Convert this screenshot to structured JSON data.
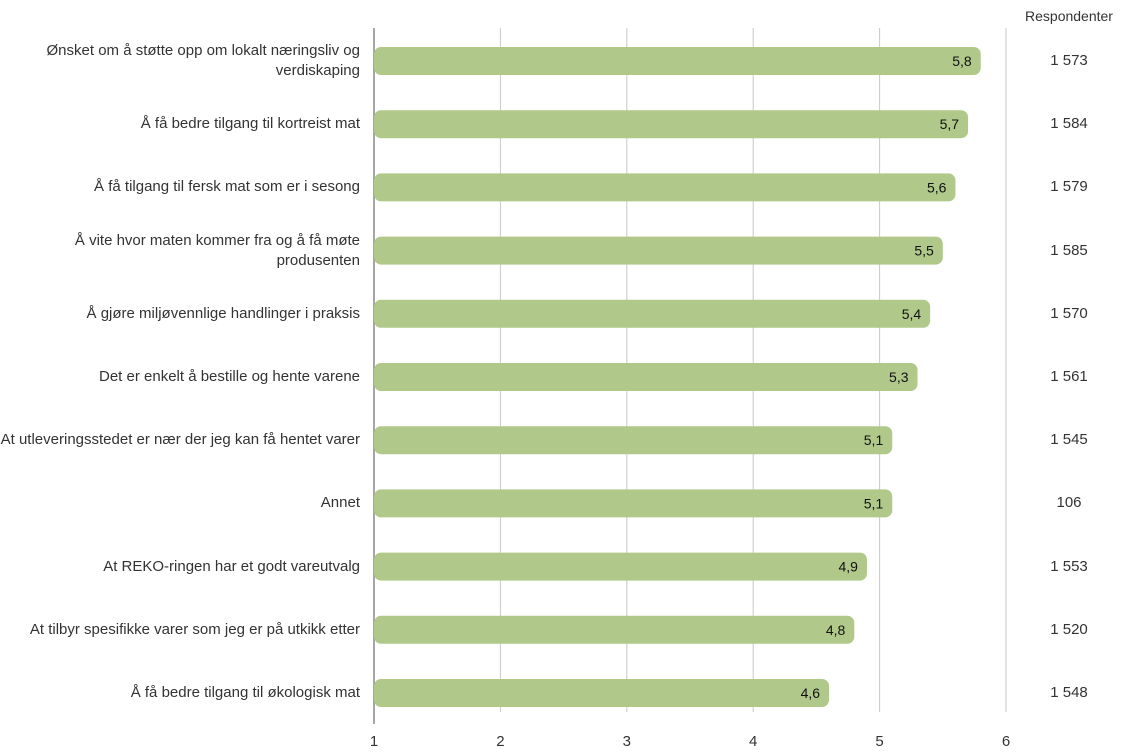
{
  "chart_data": {
    "type": "bar",
    "orientation": "horizontal",
    "categories": [
      "Ønsket om å støtte opp om lokalt næringsliv og verdiskaping",
      "Å få bedre tilgang til kortreist mat",
      "Å få tilgang til fersk mat som er i sesong",
      "Å vite hvor maten kommer fra og å få møte produsenten",
      "Å gjøre miljøvennlige handlinger i praksis",
      "Det er enkelt å bestille og hente varene",
      "At utleveringsstedet er nær der jeg kan få hentet varer",
      "Annet",
      "At REKO-ringen har et godt vareutvalg",
      "At tilbyr spesifikke varer som jeg er på utkikk etter",
      "Å få bedre tilgang til økologisk mat"
    ],
    "values": [
      5.8,
      5.7,
      5.6,
      5.5,
      5.4,
      5.3,
      5.1,
      5.1,
      4.9,
      4.8,
      4.6
    ],
    "value_labels": [
      "5,8",
      "5,7",
      "5,6",
      "5,5",
      "5,4",
      "5,3",
      "5,1",
      "5,1",
      "4,9",
      "4,8",
      "4,6"
    ],
    "xlim": [
      1,
      6
    ],
    "x_ticks": [
      "1",
      "2",
      "3",
      "4",
      "5",
      "6"
    ],
    "grid": true,
    "bar_color": "#b0c98a",
    "respondents_header": "Respondenter",
    "respondents": [
      "1 573",
      "1 584",
      "1 579",
      "1 585",
      "1 570",
      "1 561",
      "1 545",
      "106",
      "1 553",
      "1 520",
      "1 548"
    ]
  }
}
